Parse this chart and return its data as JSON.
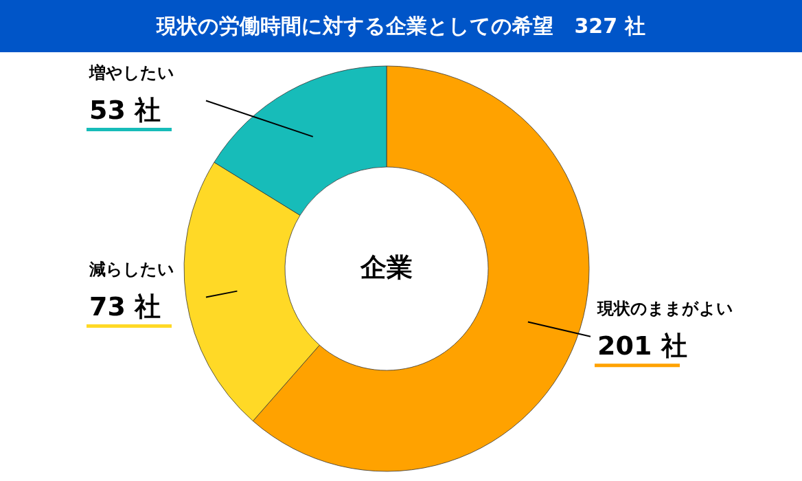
{
  "chart_data": {
    "type": "donut",
    "title": "現状の労働時間に対する企業としての希望　327 社",
    "categories": [
      "現状のままがよい",
      "減らしたい",
      "増やしたい"
    ],
    "values": [
      201,
      73,
      53
    ],
    "colors": [
      "#ffa200",
      "#ffd926",
      "#17bcb9"
    ],
    "value_labels": [
      "201 社",
      "73 社",
      "53 社"
    ],
    "annotations": [
      "企業"
    ]
  }
}
